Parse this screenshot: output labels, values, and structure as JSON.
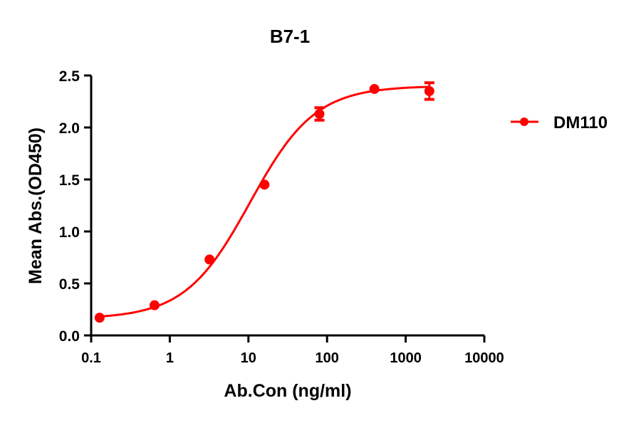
{
  "chart_data": {
    "type": "line",
    "title": "B7-1",
    "xlabel": "Ab.Con (ng/ml)",
    "ylabel": "Mean Abs.(OD450)",
    "xscale": "log",
    "xlim": [
      0.1,
      10000
    ],
    "ylim": [
      0,
      2.5
    ],
    "xticks": [
      "0.1",
      "1",
      "10",
      "100",
      "1000",
      "10000"
    ],
    "yticks": [
      "0.0",
      "0.5",
      "1.0",
      "1.5",
      "2.0",
      "2.5"
    ],
    "grid": false,
    "legend_position": "right",
    "series": [
      {
        "name": "DM110",
        "color": "#ff0000",
        "x": [
          0.128,
          0.64,
          3.2,
          16,
          80,
          400,
          2000
        ],
        "y": [
          0.17,
          0.29,
          0.73,
          1.45,
          2.13,
          2.37,
          2.35
        ],
        "error": [
          0.0,
          0.0,
          0.0,
          0.0,
          0.06,
          0.0,
          0.08
        ],
        "fit": "4PL sigmoid"
      }
    ]
  }
}
